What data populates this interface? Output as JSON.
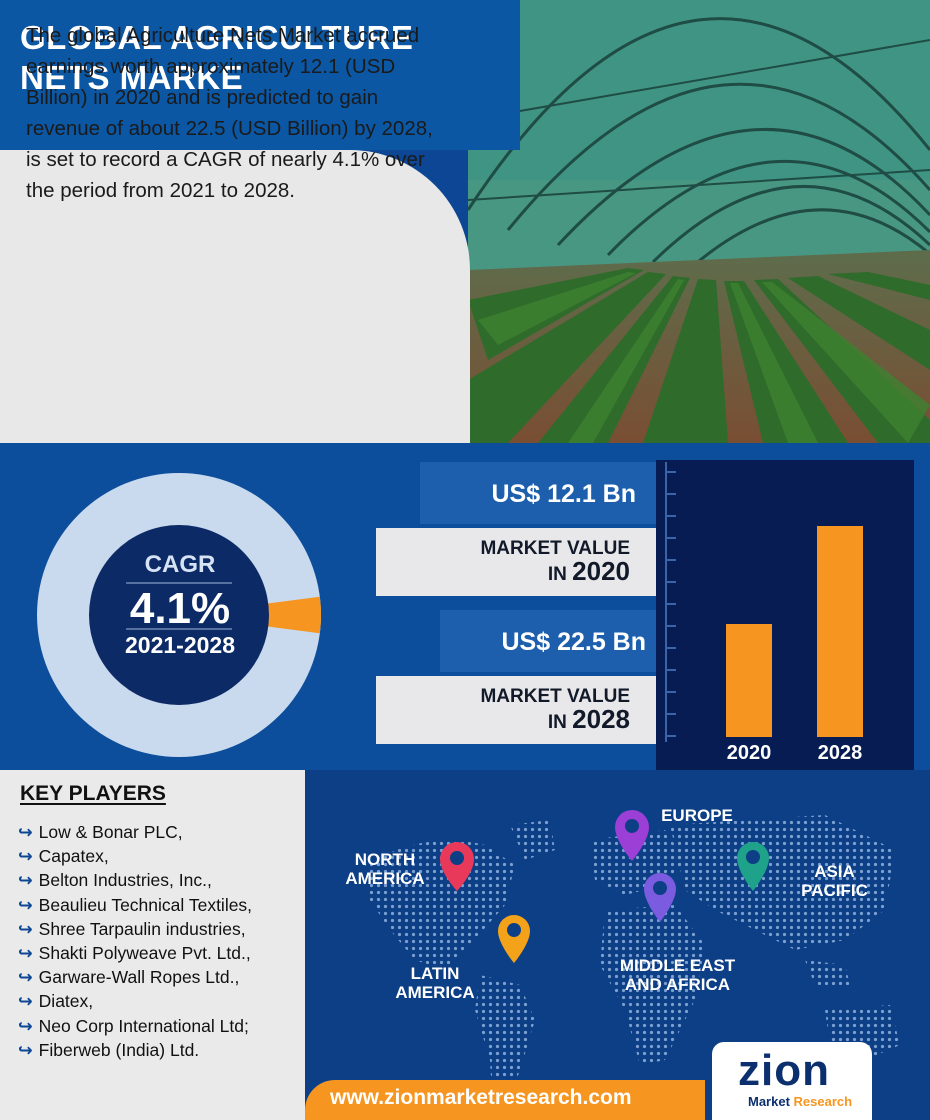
{
  "header": {
    "title": "GLOBAL AGRICULTURE NETS MARKE"
  },
  "intro": {
    "text": "The global Agriculture Nets Market accrued earnings worth approximately 12.1 (USD Billion) in 2020 and is predicted to gain revenue of about 22.5 (USD Billion) by 2028, is set to record a CAGR of nearly 4.1% over the period from 2021 to 2028."
  },
  "cagr": {
    "label": "CAGR",
    "value": "4.1%",
    "period": "2021-2028",
    "share": 0.041
  },
  "metrics": [
    {
      "value": "US$ 12.1 Bn",
      "label": "MARKET VALUE",
      "in": "IN",
      "year": "2020"
    },
    {
      "value": "US$  22.5 Bn",
      "label": "MARKET VALUE",
      "in": "IN",
      "year": "2028"
    }
  ],
  "chart_data": {
    "type": "bar",
    "categories": [
      "2020",
      "2028"
    ],
    "values": [
      12.1,
      22.5
    ],
    "ylim": [
      0,
      29
    ]
  },
  "key_players": {
    "title": "KEY PLAYERS",
    "items": [
      "Low & Bonar PLC,",
      "Capatex,",
      "Belton Industries, Inc.,",
      "Beaulieu Technical Textiles,",
      "Shree Tarpaulin industries,",
      "Shakti Polyweave Pvt. Ltd.,",
      "Garware-Wall Ropes Ltd.,",
      "Diatex,",
      "Neo Corp International Ltd;",
      "Fiberweb (India) Ltd."
    ]
  },
  "regions": {
    "north_america": [
      "NORTH",
      "AMERICA"
    ],
    "europe": [
      "EUROPE"
    ],
    "asia_pacific": [
      "ASIA",
      "PACIFIC"
    ],
    "latin_america": [
      "LATIN",
      "AMERICA"
    ],
    "mea": [
      "MIDDLE EAST",
      "AND AFRICA"
    ]
  },
  "colors": {
    "accent_orange": "#f6951f",
    "primary_blue": "#0c57a3",
    "navy": "#061c52",
    "pin_red": "#e8395b",
    "pin_purple": "#9b3fd6",
    "pin_violet": "#7b5be0",
    "pin_teal": "#1ea38a",
    "pin_yellow": "#f3a21a"
  },
  "footer": {
    "url": "www.zionmarketresearch.com"
  },
  "logo": {
    "word": "zion",
    "sub_1": "Market",
    "sub_2": "Research"
  }
}
